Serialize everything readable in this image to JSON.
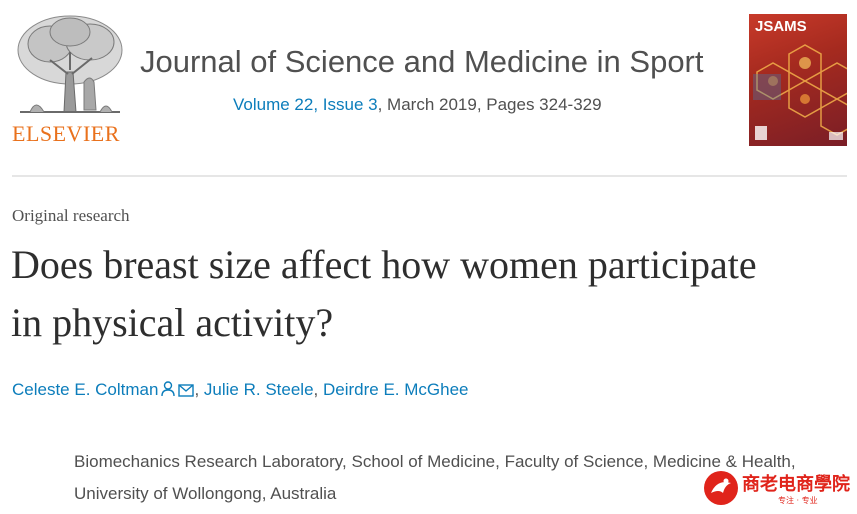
{
  "publisher": {
    "name": "ELSEVIER"
  },
  "journal": {
    "title": "Journal of Science and Medicine in Sport",
    "volume_link": "Volume 22, Issue 3",
    "issue_rest": ", March 2019, Pages 324-329",
    "cover_title": "JSAMS"
  },
  "article": {
    "type": "Original research",
    "title": "Does breast size affect how women participate in physical activity?",
    "authors": [
      {
        "name": "Celeste E. Coltman",
        "icons": [
          "person-icon",
          "envelope-icon"
        ]
      },
      {
        "name": "Julie R. Steele"
      },
      {
        "name": "Deirdre E. McGhee"
      }
    ],
    "author_separator": ", ",
    "affiliation": "Biomechanics Research Laboratory, School of Medicine, Faculty of Science, Medicine & Health, University of Wollongong, Australia"
  },
  "watermark": {
    "text": "商老电商學院",
    "sub": "专注 · 专业"
  },
  "colors": {
    "link": "#0c7dbb",
    "elsevier_orange": "#e9711c",
    "text": "#505050"
  }
}
